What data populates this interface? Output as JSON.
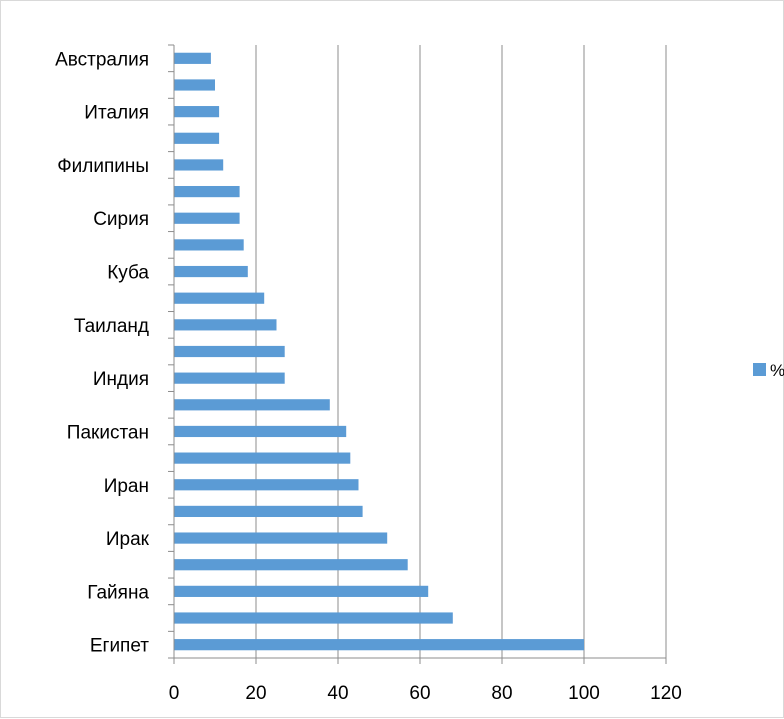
{
  "chart_data": {
    "type": "bar",
    "orientation": "horizontal",
    "categories": [
      "Египет",
      "",
      "Гайяна",
      "",
      "Ирак",
      "",
      "Иран",
      "",
      "Пакистан",
      "",
      "Индия",
      "",
      "Таиланд",
      "",
      "Куба",
      "",
      "Сирия",
      "",
      "Филипины",
      "",
      "Италия",
      "",
      "Австралия"
    ],
    "series": [
      {
        "name": "%",
        "color": "#5b9bd5",
        "values": [
          100,
          68,
          62,
          57,
          52,
          46,
          45,
          43,
          42,
          38,
          27,
          27,
          25,
          22,
          18,
          17,
          16,
          16,
          12,
          11,
          11,
          10,
          9
        ]
      }
    ],
    "x_ticks": [
      "0",
      "20",
      "40",
      "60",
      "80",
      "100",
      "120"
    ],
    "xlim": [
      0,
      120
    ],
    "grid": "vertical major gridlines",
    "legend_position": "right",
    "title": "",
    "xlabel": "",
    "ylabel": ""
  }
}
